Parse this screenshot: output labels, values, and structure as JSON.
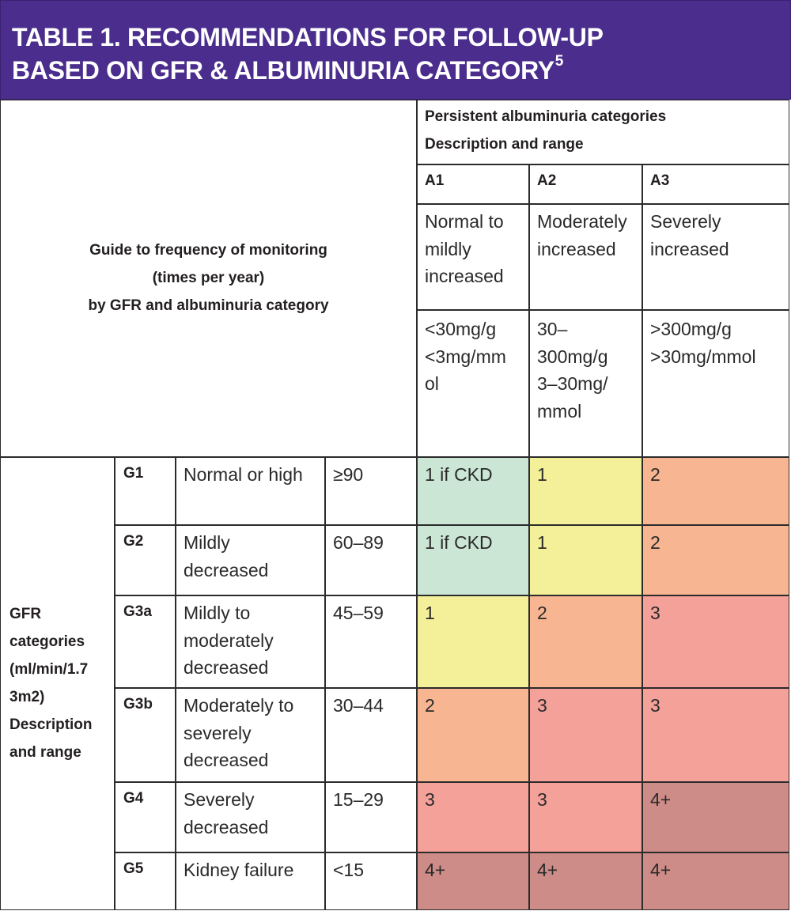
{
  "title": {
    "line1": "TABLE 1. RECOMMENDATIONS FOR FOLLOW-UP",
    "line2": "BASED ON GFR & ALBUMINURIA CATEGORY",
    "footnote": "5"
  },
  "header": {
    "persistent": "Persistent albuminuria categories",
    "description": "Description and range",
    "guide": [
      "Guide to frequency of monitoring",
      "(times per year)",
      "by GFR and albuminuria category"
    ]
  },
  "albuminuria_categories": [
    {
      "code": "A1",
      "desc": [
        "Normal to",
        "mildly",
        "increased"
      ],
      "range": [
        "<30mg/g",
        "<3mg/mm",
        "ol"
      ]
    },
    {
      "code": "A2",
      "desc": [
        "Moderately",
        "increased"
      ],
      "range": [
        "30–",
        "300mg/g",
        "3–30mg/",
        "mmol"
      ]
    },
    {
      "code": "A3",
      "desc": [
        "Severely",
        "increased"
      ],
      "range": [
        ">300mg/g",
        ">30mg/mmol"
      ]
    }
  ],
  "gfr_label": [
    "GFR",
    "categories",
    "(ml/min/1.7",
    "3m2)",
    "Description",
    "and range"
  ],
  "gfr_rows": [
    {
      "code": "G1",
      "desc": [
        "Normal or high"
      ],
      "range": "≥90",
      "values": [
        "1 if CKD",
        "1",
        "2"
      ],
      "colors": [
        "green",
        "yellow",
        "orange"
      ]
    },
    {
      "code": "G2",
      "desc": [
        "Mildly",
        "decreased"
      ],
      "range": "60–89",
      "values": [
        "1 if CKD",
        "1",
        "2"
      ],
      "colors": [
        "green",
        "yellow",
        "orange"
      ]
    },
    {
      "code": "G3a",
      "desc": [
        "Mildly to",
        "moderately",
        "decreased"
      ],
      "range": "45–59",
      "values": [
        "1",
        "2",
        "3"
      ],
      "colors": [
        "yellow",
        "orange",
        "red"
      ]
    },
    {
      "code": "G3b",
      "desc": [
        "Moderately to",
        "severely",
        "decreased"
      ],
      "range": "30–44",
      "values": [
        "2",
        "3",
        "3"
      ],
      "colors": [
        "orange",
        "red",
        "red"
      ]
    },
    {
      "code": "G4",
      "desc": [
        "Severely",
        "decreased"
      ],
      "range": "15–29",
      "values": [
        "3",
        "3",
        "4+"
      ],
      "colors": [
        "red",
        "red",
        "dark"
      ]
    },
    {
      "code": "G5",
      "desc": [
        "Kidney failure"
      ],
      "range": "<15",
      "values": [
        "4+",
        "4+",
        "4+"
      ],
      "colors": [
        "dark",
        "dark",
        "dark"
      ]
    }
  ],
  "colors": {
    "title_bg": "#4a2d8c",
    "green": "#cbe6d4",
    "yellow": "#f4f09a",
    "orange": "#f7b592",
    "red": "#f4a19a",
    "dark": "#cd8c87"
  }
}
